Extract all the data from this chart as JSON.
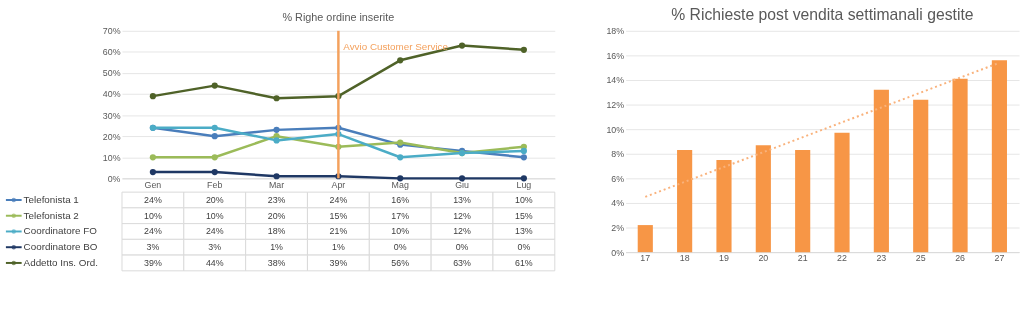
{
  "chart_data": [
    {
      "type": "line",
      "title": "% Righe ordine inserite",
      "categories": [
        "Gen",
        "Feb",
        "Mar",
        "Apr",
        "Mag",
        "Giu",
        "Lug"
      ],
      "ylim": [
        0,
        70
      ],
      "yticks": [
        {
          "value": 0,
          "label": "0%"
        },
        {
          "value": 10,
          "label": "10%"
        },
        {
          "value": 20,
          "label": "20%"
        },
        {
          "value": 30,
          "label": "30%"
        },
        {
          "value": 40,
          "label": "40%"
        },
        {
          "value": 50,
          "label": "50%"
        },
        {
          "value": 60,
          "label": "60%"
        },
        {
          "value": 70,
          "label": "70%"
        }
      ],
      "grid": "y",
      "marker": "circle",
      "legend": "bottom",
      "ref_lines": [
        {
          "axis": "x",
          "value": "Apr",
          "label": "Avvio Customer Service",
          "color": "#f4a15d"
        }
      ],
      "series": [
        {
          "name": "Telefonista 1",
          "color": "#4a7ebb",
          "values": [
            24,
            20,
            23,
            24,
            16,
            13,
            10
          ],
          "value_labels": [
            "24%",
            "20%",
            "23%",
            "24%",
            "16%",
            "13%",
            "10%"
          ]
        },
        {
          "name": "Telefonista 2",
          "color": "#9bbb59",
          "values": [
            10,
            10,
            20,
            15,
            17,
            12,
            15
          ],
          "value_labels": [
            "10%",
            "10%",
            "20%",
            "15%",
            "17%",
            "12%",
            "15%"
          ]
        },
        {
          "name": "Coordinatore FO",
          "color": "#4bacc6",
          "values": [
            24,
            24,
            18,
            21,
            10,
            12,
            13
          ],
          "value_labels": [
            "24%",
            "24%",
            "18%",
            "21%",
            "10%",
            "12%",
            "13%"
          ]
        },
        {
          "name": "Coordinatore BO",
          "color": "#1f3864",
          "values": [
            3,
            3,
            1,
            1,
            0,
            0,
            0
          ],
          "value_labels": [
            "3%",
            "3%",
            "1%",
            "1%",
            "0%",
            "0%",
            "0%"
          ]
        },
        {
          "name": "Addetto Ins. Ord.",
          "color": "#4f6228",
          "values": [
            39,
            44,
            38,
            39,
            56,
            63,
            61
          ],
          "value_labels": [
            "39%",
            "44%",
            "38%",
            "39%",
            "56%",
            "63%",
            "61%"
          ]
        }
      ]
    },
    {
      "type": "bar",
      "title": "% Richieste post vendita settimanali gestite",
      "categories": [
        "17",
        "18",
        "19",
        "20",
        "21",
        "22",
        "23",
        "25",
        "26",
        "27"
      ],
      "ylim": [
        0,
        18
      ],
      "yticks": [
        {
          "value": 0,
          "label": "0%"
        },
        {
          "value": 2,
          "label": "2%"
        },
        {
          "value": 4,
          "label": "4%"
        },
        {
          "value": 6,
          "label": "6%"
        },
        {
          "value": 8,
          "label": "8%"
        },
        {
          "value": 10,
          "label": "10%"
        },
        {
          "value": 12,
          "label": "12%"
        },
        {
          "value": 14,
          "label": "14%"
        },
        {
          "value": 16,
          "label": "16%"
        },
        {
          "value": 18,
          "label": "18%"
        }
      ],
      "grid": "y",
      "series": [
        {
          "type": "bar",
          "color": "#f79646",
          "values": [
            2.2,
            8.3,
            7.5,
            8.7,
            8.3,
            9.7,
            13.2,
            12.4,
            14.1,
            15.6
          ]
        },
        {
          "type": "line",
          "x": [
            "17",
            "27"
          ],
          "color": "#f9b27c",
          "line_style": "dotted",
          "values": [
            4.5,
            15.4
          ]
        }
      ]
    }
  ]
}
